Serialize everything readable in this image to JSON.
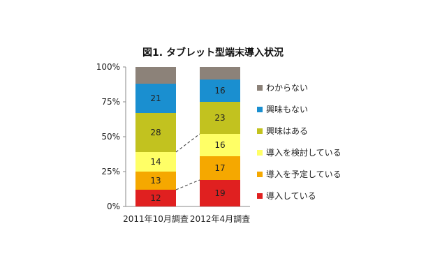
{
  "chart_data": {
    "type": "bar",
    "stacked": true,
    "title": "図1. タブレット型端末導入状況",
    "categories": [
      "2011年10月調査",
      "2012年4月調査"
    ],
    "y_ticks": [
      "0%",
      "25%",
      "50%",
      "75%",
      "100%"
    ],
    "ylim": [
      0,
      100
    ],
    "grid": false,
    "legend_position": "right",
    "series": [
      {
        "name": "導入している",
        "values": [
          12,
          19
        ],
        "color": "#e02020"
      },
      {
        "name": "導入を予定している",
        "values": [
          13,
          17
        ],
        "color": "#f5a800"
      },
      {
        "name": "導入を検討している",
        "values": [
          14,
          16
        ],
        "color": "#ffff66"
      },
      {
        "name": "興味はある",
        "values": [
          28,
          23
        ],
        "color": "#c2c21f"
      },
      {
        "name": "興味もない",
        "values": [
          21,
          16
        ],
        "color": "#1a8fd0"
      },
      {
        "name": "わからない",
        "values": [
          12,
          9
        ],
        "color": "#8c8279"
      }
    ],
    "value_labels": [
      [
        "12",
        "19"
      ],
      [
        "13",
        "17"
      ],
      [
        "14",
        "16"
      ],
      [
        "28",
        "23"
      ],
      [
        "21",
        "16"
      ],
      [
        "",
        ""
      ]
    ],
    "connector_lines_after_series": [
      "導入している",
      "導入を検討している"
    ]
  }
}
